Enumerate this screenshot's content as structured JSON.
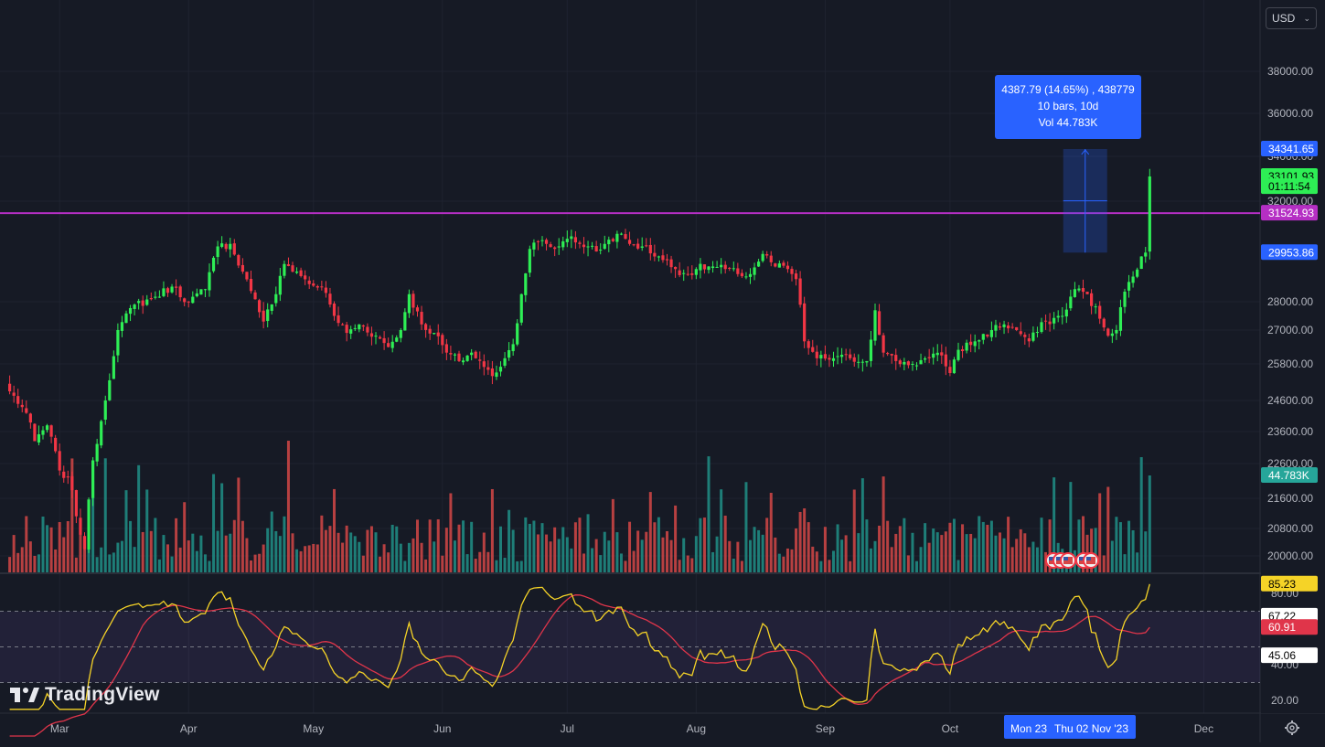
{
  "currency": {
    "label": "USD",
    "chevron_icon": "chevron-down-icon"
  },
  "brand": {
    "name": "TradingView",
    "logo_icon": "tradingview-logo-icon"
  },
  "measure": {
    "line1": "4387.79 (14.65%) , 438779",
    "line2": "10 bars, 10d",
    "line3": "Vol 44.783K"
  },
  "colors": {
    "background": "#161a25",
    "up": "#26a69a",
    "down": "#ef5350",
    "candle_up": "#2eee55",
    "candle_down": "#f23645",
    "hline": "#b52fc4",
    "rsi": "#f5d327",
    "rsi_ma": "#e0354a",
    "measure": "#2962ff"
  },
  "price_labels": [
    {
      "text": "34341.65",
      "bg": "#2962ff",
      "fg": "#ffffff",
      "value": 34341.65
    },
    {
      "text": "33101.93",
      "bg": "#2eee55",
      "fg": "#000000",
      "value": 33101.93
    },
    {
      "text": "01:11:54",
      "bg": "#2eee55",
      "fg": "#000000",
      "value": 32650
    },
    {
      "text": "31524.93",
      "bg": "#b52fc4",
      "fg": "#ffffff",
      "value": 31524.93
    },
    {
      "text": "29953.86",
      "bg": "#2962ff",
      "fg": "#ffffff",
      "value": 29953.86
    }
  ],
  "volume_label": {
    "text": "44.783K",
    "bg": "#26a69a",
    "fg": "#ffffff"
  },
  "rsi_labels": [
    {
      "text": "85.23",
      "bg": "#f5d327",
      "fg": "#000000",
      "value": 85.23
    },
    {
      "text": "67.22",
      "bg": "#ffffff",
      "fg": "#000000",
      "value": 67.22
    },
    {
      "text": "60.91",
      "bg": "#e0354a",
      "fg": "#ffffff",
      "value": 60.91
    },
    {
      "text": "45.06",
      "bg": "#ffffff",
      "fg": "#000000",
      "value": 45.06
    }
  ],
  "time_labels": [
    {
      "text": "Mon 23",
      "index": 225
    },
    {
      "text": "Thu 02 Nov '23",
      "index": 235
    }
  ],
  "chart_data": {
    "type": "candlestick",
    "symbol_interval": "1D",
    "price_ticks": [
      "38000.00",
      "36000.00",
      "34000.00",
      "32000.00",
      "28000.00",
      "27000.00",
      "25800.00",
      "24600.00",
      "23600.00",
      "22600.00",
      "21600.00",
      "20800.00",
      "20000.00"
    ],
    "rsi_ticks": [
      "80.00",
      "40.00",
      "20.00"
    ],
    "x_axis": [
      "Mar",
      "Apr",
      "May",
      "Jun",
      "Jul",
      "Aug",
      "Sep",
      "Oct",
      "Dec"
    ],
    "month_start_index": {
      "Mar": 12,
      "Apr": 43,
      "May": 73,
      "Jun": 104,
      "Jul": 134,
      "Aug": 165,
      "Sep": 196,
      "Oct": 226,
      "Dec": 287
    },
    "horizontal_line": 31524.93,
    "measure": {
      "from_index": 233,
      "to_index": 243,
      "low": 29953.86,
      "high": 34341.65
    },
    "anchor_closes": [
      [
        0,
        24900
      ],
      [
        4,
        24200
      ],
      [
        6,
        23300
      ],
      [
        9,
        23800
      ],
      [
        12,
        22400
      ],
      [
        14,
        22200
      ],
      [
        18,
        20200
      ],
      [
        20,
        22700
      ],
      [
        23,
        24600
      ],
      [
        26,
        27000
      ],
      [
        30,
        27900
      ],
      [
        34,
        28100
      ],
      [
        39,
        28600
      ],
      [
        43,
        28000
      ],
      [
        47,
        28500
      ],
      [
        50,
        30200
      ],
      [
        53,
        30300
      ],
      [
        56,
        29200
      ],
      [
        59,
        28100
      ],
      [
        61,
        27300
      ],
      [
        64,
        28300
      ],
      [
        66,
        29500
      ],
      [
        69,
        29200
      ],
      [
        72,
        28700
      ],
      [
        75,
        28600
      ],
      [
        78,
        27500
      ],
      [
        81,
        26900
      ],
      [
        84,
        27200
      ],
      [
        88,
        26800
      ],
      [
        91,
        26400
      ],
      [
        94,
        27000
      ],
      [
        96,
        28300
      ],
      [
        99,
        27200
      ],
      [
        102,
        26900
      ],
      [
        105,
        26200
      ],
      [
        108,
        25900
      ],
      [
        111,
        26200
      ],
      [
        114,
        25700
      ],
      [
        116,
        25400
      ],
      [
        119,
        26000
      ],
      [
        121,
        26500
      ],
      [
        123,
        28300
      ],
      [
        125,
        30100
      ],
      [
        127,
        30400
      ],
      [
        129,
        30300
      ],
      [
        131,
        30100
      ],
      [
        133,
        30400
      ],
      [
        135,
        30600
      ],
      [
        137,
        30300
      ],
      [
        139,
        30200
      ],
      [
        141,
        30000
      ],
      [
        143,
        30300
      ],
      [
        146,
        30700
      ],
      [
        149,
        30300
      ],
      [
        152,
        30200
      ],
      [
        156,
        29800
      ],
      [
        160,
        29300
      ],
      [
        163,
        29100
      ],
      [
        165,
        29300
      ],
      [
        168,
        29400
      ],
      [
        172,
        29300
      ],
      [
        175,
        29100
      ],
      [
        178,
        29100
      ],
      [
        181,
        29900
      ],
      [
        184,
        29400
      ],
      [
        187,
        29300
      ],
      [
        189,
        28900
      ],
      [
        191,
        26600
      ],
      [
        194,
        26000
      ],
      [
        198,
        26000
      ],
      [
        202,
        26000
      ],
      [
        206,
        25900
      ],
      [
        208,
        27700
      ],
      [
        210,
        26200
      ],
      [
        213,
        25900
      ],
      [
        217,
        25800
      ],
      [
        221,
        26000
      ],
      [
        224,
        26100
      ],
      [
        226,
        25500
      ],
      [
        228,
        26300
      ],
      [
        232,
        26600
      ],
      [
        236,
        27000
      ],
      [
        239,
        27200
      ],
      [
        242,
        27000
      ],
      [
        245,
        26600
      ],
      [
        249,
        27300
      ],
      [
        253,
        27500
      ],
      [
        256,
        28500
      ],
      [
        259,
        28300
      ],
      [
        262,
        27400
      ],
      [
        264,
        26800
      ],
      [
        266,
        27000
      ],
      [
        268,
        28400
      ],
      [
        270,
        29000
      ],
      [
        272,
        29800
      ],
      [
        273,
        30000
      ],
      [
        274,
        33101.93
      ]
    ],
    "volume_axis_max": 34000,
    "rsi_levels": [
      70,
      30
    ],
    "rsi_last": 85.23,
    "rsi_ma_last": 60.91
  }
}
